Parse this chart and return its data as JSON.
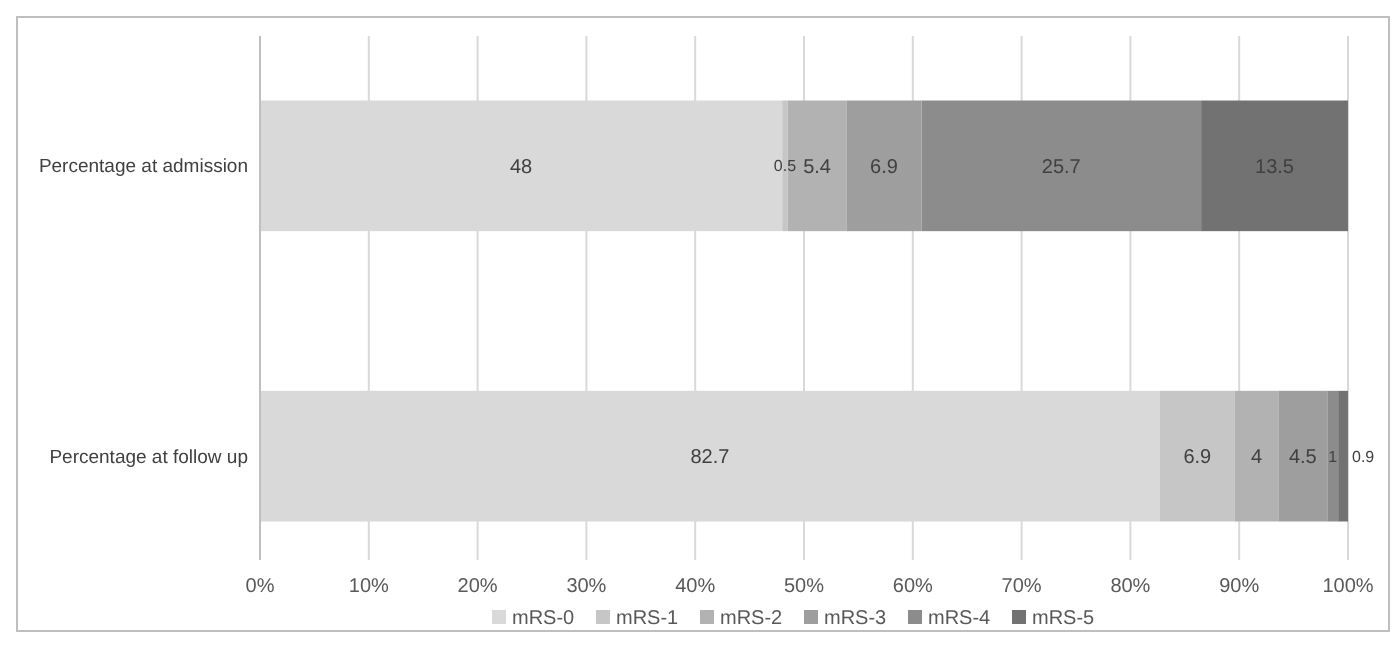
{
  "chart_data": {
    "type": "bar",
    "orientation": "horizontal",
    "stacked": true,
    "categories": [
      "Percentage at admission",
      "Percentage at follow up"
    ],
    "series": [
      {
        "name": "mRS-0",
        "color": "#d9d9d9",
        "values": [
          48,
          82.7
        ]
      },
      {
        "name": "mRS-1",
        "color": "#c6c6c6",
        "values": [
          0.5,
          6.9
        ]
      },
      {
        "name": "mRS-2",
        "color": "#b2b2b2",
        "values": [
          5.4,
          4
        ]
      },
      {
        "name": "mRS-3",
        "color": "#9e9e9e",
        "values": [
          6.9,
          4.5
        ]
      },
      {
        "name": "mRS-4",
        "color": "#8c8c8c",
        "values": [
          25.7,
          1
        ]
      },
      {
        "name": "mRS-5",
        "color": "#727272",
        "values": [
          13.5,
          0.9
        ]
      }
    ],
    "xlim": [
      0,
      100
    ],
    "xticks": [
      {
        "value": 0,
        "label": "0%"
      },
      {
        "value": 10,
        "label": "10%"
      },
      {
        "value": 20,
        "label": "20%"
      },
      {
        "value": 30,
        "label": "30%"
      },
      {
        "value": 40,
        "label": "40%"
      },
      {
        "value": 50,
        "label": "50%"
      },
      {
        "value": 60,
        "label": "60%"
      },
      {
        "value": 70,
        "label": "70%"
      },
      {
        "value": 80,
        "label": "80%"
      },
      {
        "value": 90,
        "label": "90%"
      },
      {
        "value": 100,
        "label": "100%"
      }
    ],
    "grid": "x",
    "data_labels": true,
    "legend": "bottom"
  }
}
